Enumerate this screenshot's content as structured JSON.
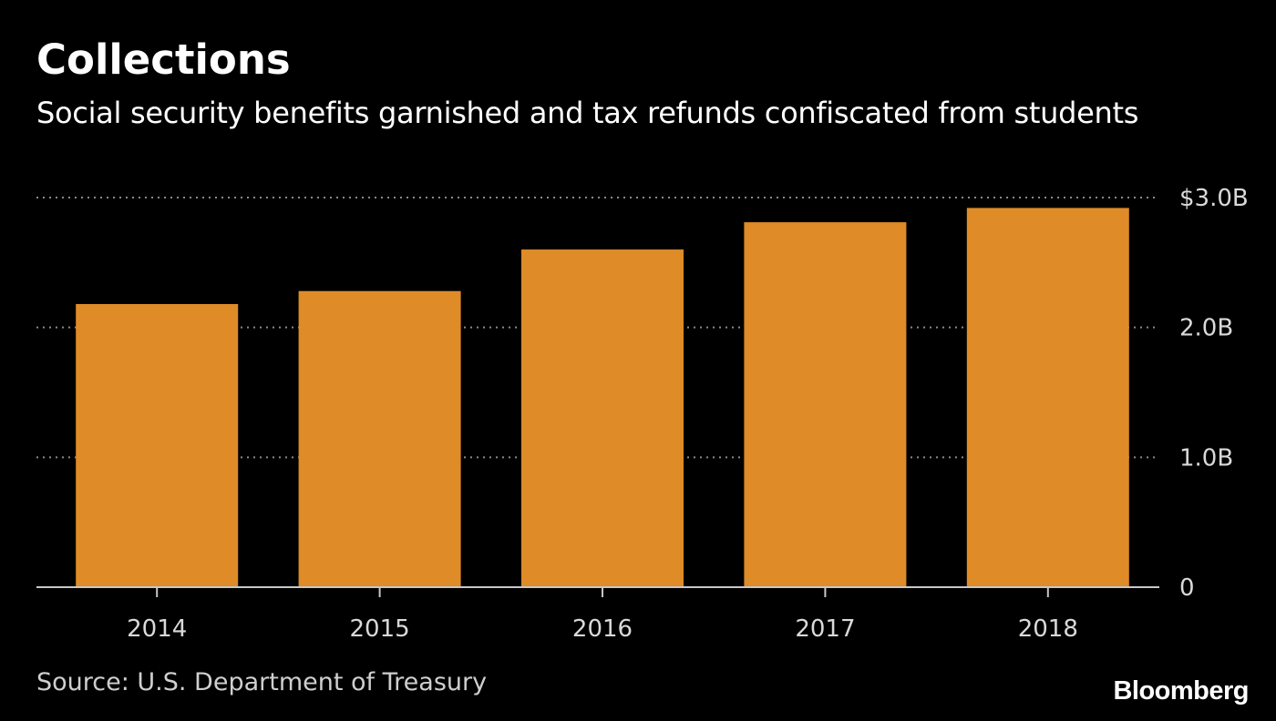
{
  "colors": {
    "background": "#000000",
    "bar": "#de8b28",
    "text": "#ffffff",
    "muted_text": "#d9d9d9",
    "grid": "#8a8a8a",
    "axis": "#c8c8c8"
  },
  "header": {
    "title": "Collections",
    "subtitle": "Social security benefits garnished and tax refunds confiscated from students"
  },
  "footer": {
    "source": "Source: U.S. Department of Treasury",
    "logo": "Bloomberg"
  },
  "chart_data": {
    "type": "bar",
    "title": "Collections",
    "subtitle": "Social security benefits garnished and tax refunds confiscated from students",
    "categories": [
      "2014",
      "2015",
      "2016",
      "2017",
      "2018"
    ],
    "values": [
      2.18,
      2.28,
      2.6,
      2.81,
      2.92
    ],
    "unit": "billions USD",
    "ylim": [
      0,
      3.0
    ],
    "yticks": [
      0,
      1.0,
      2.0,
      3.0
    ],
    "ytick_labels": [
      "0",
      "1.0B",
      "2.0B",
      "$3.0B"
    ],
    "y_axis_side": "right",
    "grid": true,
    "grid_style": "dotted",
    "legend": "none",
    "xlabel": "",
    "ylabel": ""
  }
}
